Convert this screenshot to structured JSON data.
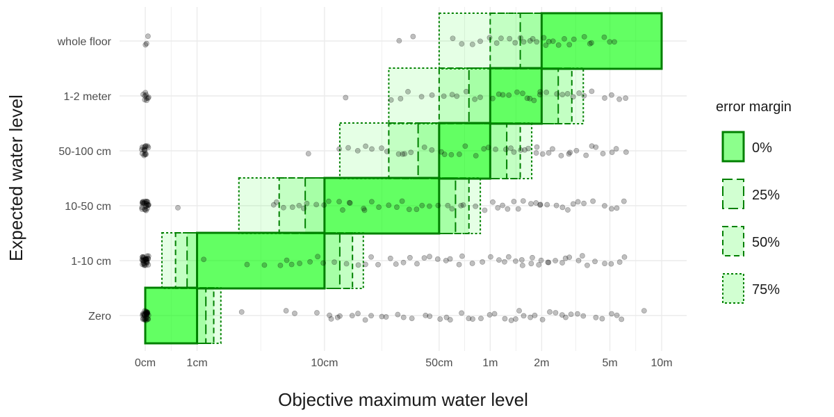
{
  "chart_data": {
    "type": "scatter",
    "xlabel": "Objective maximum water level",
    "ylabel": "Expected water level",
    "x_scale": "pseudo-log (cm)",
    "x_ticks": [
      {
        "value": 0,
        "label": "0cm"
      },
      {
        "value": 1,
        "label": "1cm"
      },
      {
        "value": 10,
        "label": "10cm"
      },
      {
        "value": 50,
        "label": "50cm"
      },
      {
        "value": 100,
        "label": "1m"
      },
      {
        "value": 200,
        "label": "2m"
      },
      {
        "value": 500,
        "label": "5m"
      },
      {
        "value": 1000,
        "label": "10m"
      }
    ],
    "categories": [
      "Zero",
      "1-10 cm",
      "10-50 cm",
      "50-100 cm",
      "1-2 meter",
      "whole floor"
    ],
    "grid": true,
    "legend": {
      "title": "error margin",
      "placement": "right",
      "entries": [
        {
          "label": "0%",
          "style": "solid"
        },
        {
          "label": "25%",
          "style": "longdash"
        },
        {
          "label": "50%",
          "style": "dashed"
        },
        {
          "label": "75%",
          "style": "dotted"
        }
      ]
    },
    "colors": {
      "fill": "#00ff00",
      "stroke": "#008000",
      "points": "#000000",
      "grid": "#ebebeb"
    },
    "boxes": [
      {
        "category": "Zero",
        "margin": "0%",
        "xmin": 0,
        "xmax": 1
      },
      {
        "category": "Zero",
        "margin": "25%",
        "xmin": 0,
        "xmax": 1.25
      },
      {
        "category": "Zero",
        "margin": "50%",
        "xmin": 0,
        "xmax": 1.5
      },
      {
        "category": "Zero",
        "margin": "75%",
        "xmin": 0,
        "xmax": 1.75
      },
      {
        "category": "1-10 cm",
        "margin": "0%",
        "xmin": 1,
        "xmax": 10
      },
      {
        "category": "1-10 cm",
        "margin": "25%",
        "xmin": 0.75,
        "xmax": 12.5
      },
      {
        "category": "1-10 cm",
        "margin": "50%",
        "xmin": 0.5,
        "xmax": 15
      },
      {
        "category": "1-10 cm",
        "margin": "75%",
        "xmin": 0.25,
        "xmax": 17.5
      },
      {
        "category": "10-50 cm",
        "margin": "0%",
        "xmin": 10,
        "xmax": 50
      },
      {
        "category": "10-50 cm",
        "margin": "25%",
        "xmin": 7.5,
        "xmax": 62.5
      },
      {
        "category": "10-50 cm",
        "margin": "50%",
        "xmin": 5,
        "xmax": 75
      },
      {
        "category": "10-50 cm",
        "margin": "75%",
        "xmin": 2.5,
        "xmax": 87.5
      },
      {
        "category": "50-100 cm",
        "margin": "0%",
        "xmin": 50,
        "xmax": 100
      },
      {
        "category": "50-100 cm",
        "margin": "25%",
        "xmin": 37.5,
        "xmax": 125
      },
      {
        "category": "50-100 cm",
        "margin": "50%",
        "xmin": 25,
        "xmax": 150
      },
      {
        "category": "50-100 cm",
        "margin": "75%",
        "xmin": 12.5,
        "xmax": 175
      },
      {
        "category": "1-2 meter",
        "margin": "0%",
        "xmin": 100,
        "xmax": 200
      },
      {
        "category": "1-2 meter",
        "margin": "25%",
        "xmin": 75,
        "xmax": 250
      },
      {
        "category": "1-2 meter",
        "margin": "50%",
        "xmin": 50,
        "xmax": 300
      },
      {
        "category": "1-2 meter",
        "margin": "75%",
        "xmin": 25,
        "xmax": 350
      },
      {
        "category": "whole floor",
        "margin": "0%",
        "xmin": 200,
        "xmax": 1000
      },
      {
        "category": "whole floor",
        "margin": "25%",
        "xmin": 150,
        "xmax": 1000
      },
      {
        "category": "whole floor",
        "margin": "50%",
        "xmin": 100,
        "xmax": 1000
      },
      {
        "category": "whole floor",
        "margin": "75%",
        "xmin": 50,
        "xmax": 1000
      }
    ],
    "points": [
      {
        "category": "Zero",
        "x": [
          0,
          0,
          0,
          0,
          0,
          0,
          0,
          0,
          0,
          0,
          0,
          0,
          0,
          0,
          0,
          0,
          0,
          0,
          0,
          0,
          0,
          0,
          0,
          0,
          0,
          0,
          0,
          0,
          0,
          0,
          2.7,
          5.5,
          6.5,
          9,
          10.5,
          11,
          12,
          13,
          15,
          16,
          18,
          20,
          22,
          25,
          28,
          30,
          35,
          40,
          45,
          50,
          55,
          60,
          70,
          75,
          80,
          90,
          100,
          110,
          120,
          130,
          140,
          150,
          160,
          170,
          180,
          200,
          220,
          240,
          260,
          280,
          300,
          330,
          360,
          400,
          450,
          500,
          550,
          600,
          800
        ]
      },
      {
        "category": "1-10 cm",
        "x": [
          0,
          0,
          0,
          0,
          0,
          0,
          0,
          0,
          0,
          0,
          0,
          0,
          0,
          0,
          0,
          0,
          0,
          0,
          0,
          0,
          0,
          0,
          0,
          0,
          0,
          0,
          0,
          0,
          0,
          0,
          1.2,
          3,
          4,
          5,
          5.5,
          6,
          7,
          8,
          9,
          9.5,
          12,
          14,
          16,
          18,
          20,
          22,
          25,
          28,
          30,
          33,
          36,
          40,
          45,
          50,
          55,
          60,
          65,
          70,
          80,
          90,
          100,
          110,
          120,
          130,
          140,
          150,
          160,
          170,
          180,
          190,
          200,
          210,
          220,
          240,
          260,
          280,
          300,
          320,
          350,
          380,
          400,
          450,
          500,
          550,
          600
        ]
      },
      {
        "category": "10-50 cm",
        "x": [
          0,
          0,
          0,
          0,
          0,
          0,
          0,
          0,
          0,
          0,
          0,
          0,
          0,
          0,
          0,
          0,
          0,
          0,
          0,
          0,
          0,
          0,
          0,
          0.6,
          4.5,
          5,
          5.5,
          6,
          7,
          7.5,
          8,
          9,
          10,
          11,
          12,
          13,
          14,
          15,
          17,
          18,
          20,
          22,
          25,
          28,
          30,
          33,
          36,
          40,
          45,
          50,
          55,
          60,
          65,
          70,
          80,
          90,
          100,
          110,
          120,
          130,
          140,
          150,
          160,
          170,
          180,
          190,
          200,
          220,
          240,
          260,
          280,
          300,
          320,
          350,
          400,
          450,
          500,
          550,
          600
        ]
      },
      {
        "category": "50-100 cm",
        "x": [
          0,
          0,
          0,
          0,
          0,
          0,
          0,
          0,
          0,
          0,
          0,
          0,
          0,
          0,
          0,
          8,
          12,
          14,
          16,
          18,
          20,
          22,
          25,
          28,
          30,
          32,
          35,
          40,
          45,
          50,
          55,
          60,
          65,
          70,
          80,
          90,
          100,
          110,
          120,
          130,
          140,
          150,
          160,
          170,
          180,
          190,
          200,
          220,
          240,
          260,
          280,
          300,
          320,
          350,
          380,
          400,
          450,
          500,
          550,
          600
        ]
      },
      {
        "category": "1-2 meter",
        "x": [
          0,
          0,
          0,
          0,
          0,
          0,
          0,
          0,
          0,
          14,
          25,
          30,
          32,
          40,
          45,
          55,
          60,
          65,
          70,
          80,
          90,
          100,
          110,
          120,
          130,
          140,
          150,
          160,
          170,
          180,
          190,
          200,
          220,
          240,
          260,
          280,
          300,
          320,
          350,
          400,
          450,
          500,
          550,
          600
        ]
      },
      {
        "category": "whole floor",
        "x": [
          0,
          0,
          0,
          30,
          35,
          60,
          70,
          80,
          90,
          100,
          110,
          120,
          130,
          140,
          150,
          160,
          170,
          180,
          190,
          200,
          210,
          220,
          240,
          260,
          280,
          300,
          320,
          350,
          380,
          400,
          450,
          500,
          550
        ]
      }
    ]
  }
}
